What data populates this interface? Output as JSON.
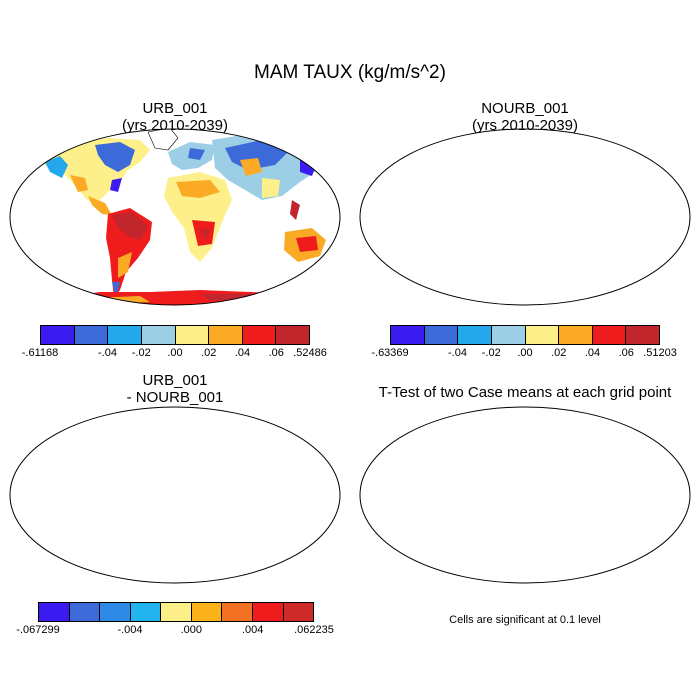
{
  "title": "MAM TAUX (kg/m/s^2)",
  "panels": {
    "urb": {
      "title_line1": "URB_001",
      "title_line2": "(yrs 2010-2039)"
    },
    "nourb": {
      "title_line1": "NOURB_001",
      "title_line2": "(yrs 2010-2039)"
    },
    "diff": {
      "title_line1": "URB_001",
      "title_line2": "- NOURB_001"
    },
    "ttest": {
      "title": "T-Test of two Case means at each grid point",
      "note": "Cells are significant at 0.1 level"
    }
  },
  "colorbars": {
    "urb": {
      "colors": [
        "#3b1cf0",
        "#3c6ad8",
        "#24a8ec",
        "#9ccfe6",
        "#fdf08a",
        "#fbaa25",
        "#ee1c1c",
        "#c0262c"
      ],
      "labels": [
        "-.61168",
        "-.04",
        "-.02",
        ".00",
        ".02",
        ".04",
        ".06",
        ".52486"
      ]
    },
    "nourb": {
      "colors": [
        "#3b1cf0",
        "#3c6ad8",
        "#24a8ec",
        "#9ccfe6",
        "#fdf08a",
        "#fbaa25",
        "#ee1c1c",
        "#c0262c"
      ],
      "labels": [
        "-.63369",
        "-.04",
        "-.02",
        ".00",
        ".02",
        ".04",
        ".06",
        ".51203"
      ]
    },
    "diff": {
      "colors": [
        "#3b1cf0",
        "#3c6ad8",
        "#2e8ae6",
        "#23b4f0",
        "#fdf08a",
        "#fbb21b",
        "#f27122",
        "#ee1c1c",
        "#cf2a2a"
      ],
      "labels": [
        "-.067299",
        "-.004",
        ".000",
        ".004",
        ".062235"
      ]
    }
  }
}
